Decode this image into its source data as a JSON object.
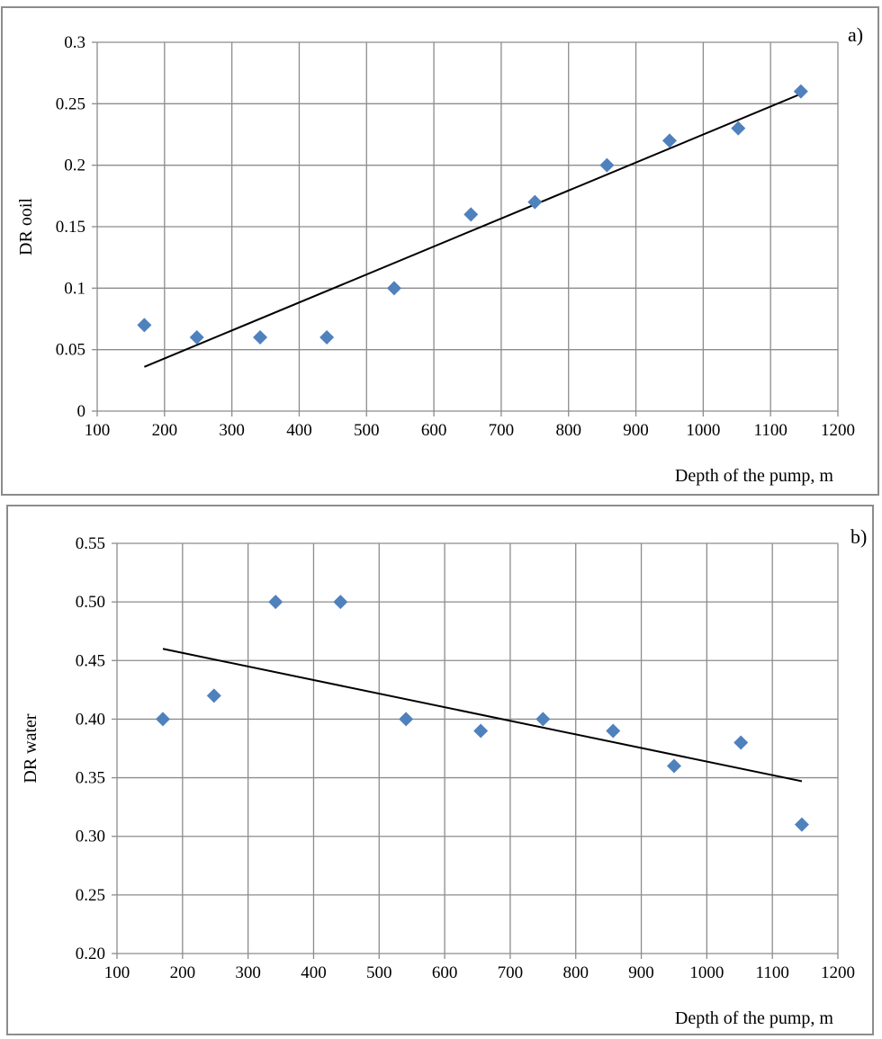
{
  "chart_data": [
    {
      "panel_label": "a)",
      "type": "scatter",
      "xlabel": "Depth of the pump, m",
      "ylabel": "DR ooil",
      "xlim": [
        100,
        1200
      ],
      "ylim": [
        0,
        0.3
      ],
      "x_ticks": [
        "100",
        "200",
        "300",
        "400",
        "500",
        "600",
        "700",
        "800",
        "900",
        "1000",
        "1100",
        "1200"
      ],
      "y_ticks": [
        "0",
        "0.05",
        "0.1",
        "0.15",
        "0.2",
        "0.25",
        "0.3"
      ],
      "grid": true,
      "marker_color": "#4F81BD",
      "trend_color": "#000000",
      "points": [
        {
          "x": 170,
          "y": 0.07
        },
        {
          "x": 248,
          "y": 0.06
        },
        {
          "x": 342,
          "y": 0.06
        },
        {
          "x": 441,
          "y": 0.06
        },
        {
          "x": 541,
          "y": 0.1
        },
        {
          "x": 655,
          "y": 0.16
        },
        {
          "x": 750,
          "y": 0.17
        },
        {
          "x": 857,
          "y": 0.2
        },
        {
          "x": 950,
          "y": 0.22
        },
        {
          "x": 1052,
          "y": 0.23
        },
        {
          "x": 1145,
          "y": 0.26
        }
      ],
      "trendline": [
        {
          "x": 170,
          "y": 0.036
        },
        {
          "x": 1145,
          "y": 0.258
        }
      ]
    },
    {
      "panel_label": "b)",
      "type": "scatter",
      "xlabel": "Depth of the pump, m",
      "ylabel": "DR  water",
      "xlim": [
        100,
        1200
      ],
      "ylim": [
        0.2,
        0.55
      ],
      "x_ticks": [
        "100",
        "200",
        "300",
        "400",
        "500",
        "600",
        "700",
        "800",
        "900",
        "1000",
        "1100",
        "1200"
      ],
      "y_ticks": [
        "0.20",
        "0.25",
        "0.30",
        "0.35",
        "0.40",
        "0.45",
        "0.50",
        "0.55"
      ],
      "grid": true,
      "marker_color": "#4F81BD",
      "trend_color": "#000000",
      "points": [
        {
          "x": 170,
          "y": 0.4
        },
        {
          "x": 248,
          "y": 0.42
        },
        {
          "x": 342,
          "y": 0.5
        },
        {
          "x": 441,
          "y": 0.5
        },
        {
          "x": 541,
          "y": 0.4
        },
        {
          "x": 655,
          "y": 0.39
        },
        {
          "x": 750,
          "y": 0.4
        },
        {
          "x": 857,
          "y": 0.39
        },
        {
          "x": 950,
          "y": 0.36
        },
        {
          "x": 1052,
          "y": 0.38
        },
        {
          "x": 1145,
          "y": 0.31
        }
      ],
      "trendline": [
        {
          "x": 170,
          "y": 0.46
        },
        {
          "x": 1145,
          "y": 0.347
        }
      ]
    }
  ]
}
